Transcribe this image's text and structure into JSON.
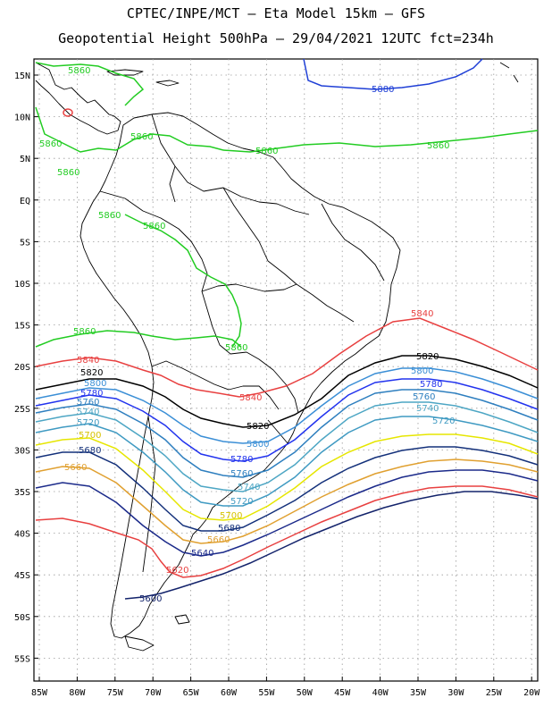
{
  "header": {
    "line1": "CPTEC/INPE/MCT –  Eta Model 15km – GFS",
    "line2": "Geopotential Height 500hPa – 29/04/2021 12UTC fct=234h"
  },
  "axes": {
    "lat_labels": [
      "15N",
      "10N",
      "5N",
      "EQ",
      "5S",
      "10S",
      "15S",
      "20S",
      "25S",
      "30S",
      "35S",
      "40S",
      "45S",
      "50S",
      "55S"
    ],
    "lon_labels": [
      "85W",
      "80W",
      "75W",
      "70W",
      "65W",
      "60W",
      "55W",
      "50W",
      "45W",
      "40W",
      "35W",
      "30W",
      "25W",
      "20W"
    ]
  },
  "contours": [
    {
      "value": "5880",
      "color": "#1f3fd6"
    },
    {
      "value": "5860",
      "color": "#22cc22"
    },
    {
      "value": "5840",
      "color": "#e84040"
    },
    {
      "value": "5820",
      "color": "#000000"
    },
    {
      "value": "5800",
      "color": "#3b8fd6"
    },
    {
      "value": "5780",
      "color": "#2233ee"
    },
    {
      "value": "5760",
      "color": "#2e7fbf"
    },
    {
      "value": "5740",
      "color": "#4da6c4"
    },
    {
      "value": "5720",
      "color": "#3f9ac2"
    },
    {
      "value": "5700",
      "color": "#e6e600"
    },
    {
      "value": "5680",
      "color": "#13307a"
    },
    {
      "value": "5660",
      "color": "#e0a030"
    },
    {
      "value": "5640",
      "color": "#1b2a8a"
    },
    {
      "value": "5620",
      "color": "#e84040"
    },
    {
      "value": "5600",
      "color": "#13236b"
    }
  ],
  "labels": {
    "l5880_a": "5880",
    "l5860_a": "5860",
    "l5860_b": "5860",
    "l5860_c": "5860",
    "l5860_d": "5860",
    "l5860_e": "5860",
    "l5860_f": "5860",
    "l5860_g": "5860",
    "l5860_h": "5860",
    "l5860_i": "5860",
    "l5860_j": "5860",
    "l5840_a": "5840",
    "l5840_b": "5840",
    "l5840_c": "5840",
    "l5820_a": "5820",
    "l5820_b": "5820",
    "l5820_c": "5820",
    "l5800_a": "5800",
    "l5800_b": "5800",
    "l5800_c": "5800",
    "l5780_a": "5780",
    "l5780_b": "5780",
    "l5780_c": "5780",
    "l5760_a": "5760",
    "l5760_b": "5760",
    "l5760_c": "5760",
    "l5740_a": "5740",
    "l5740_b": "5740",
    "l5740_c": "5740",
    "l5720_a": "5720",
    "l5720_b": "5720",
    "l5720_c": "5720",
    "l5700_a": "5700",
    "l5700_b": "5700",
    "l5680_a": "5680",
    "l5680_b": "5680",
    "l5660_a": "5660",
    "l5660_b": "5660",
    "l5640_a": "5640",
    "l5620_a": "5620",
    "l5600_a": "5600"
  }
}
